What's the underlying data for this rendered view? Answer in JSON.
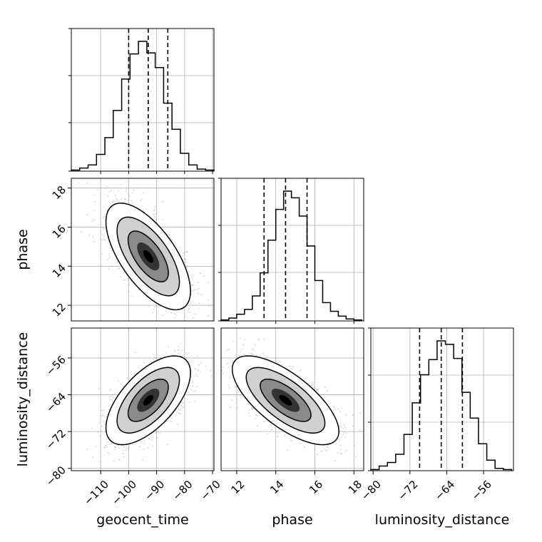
{
  "chart_data": {
    "type": "corner",
    "grid": true,
    "parameters": [
      "geocent_time",
      "phase",
      "luminosity_distance"
    ],
    "axis_labels": {
      "geocent_time": "geocent_time",
      "phase": "phase",
      "luminosity_distance": "luminosity_distance"
    },
    "ranges": {
      "geocent_time": [
        -120.5,
        -69.5
      ],
      "phase": [
        11.2,
        18.5
      ],
      "luminosity_distance": [
        -80.5,
        -49.5
      ]
    },
    "ticks": {
      "geocent_time": [
        -110,
        -100,
        -90,
        -80,
        -70
      ],
      "phase": [
        12,
        14,
        16,
        18
      ],
      "luminosity_distance": [
        -80,
        -72,
        -64,
        -56
      ]
    },
    "tick_labels": {
      "geocent_time": [
        "−110",
        "−100",
        "−90",
        "−80",
        "−70"
      ],
      "phase": [
        "12",
        "14",
        "16",
        "18"
      ],
      "luminosity_distance": [
        "−80",
        "−72",
        "−64",
        "−56"
      ]
    },
    "quantiles": {
      "geocent_time": [
        -100,
        -93,
        -86
      ],
      "phase": [
        13.4,
        14.5,
        15.6
      ],
      "luminosity_distance": [
        -69.9,
        -65.2,
        -60.6
      ]
    },
    "histograms": {
      "geocent_time": {
        "bins": [
          -120.5,
          -117.5,
          -114.5,
          -111.5,
          -108.5,
          -105.5,
          -102.5,
          -99.5,
          -96.5,
          -93.5,
          -90.5,
          -87.5,
          -84.5,
          -81.5,
          -78.5,
          -75.5,
          -72.5,
          -69.5
        ],
        "counts": [
          1,
          3,
          6,
          16,
          32,
          58,
          88,
          112,
          124,
          113,
          99,
          65,
          40,
          17,
          6,
          2,
          1
        ]
      },
      "phase": {
        "bins": [
          11.2,
          11.6,
          12.0,
          12.4,
          12.8,
          13.2,
          13.6,
          14.0,
          14.4,
          14.8,
          15.2,
          15.6,
          16.0,
          16.4,
          16.8,
          17.2,
          17.6,
          18.0,
          18.4
        ],
        "counts": [
          1,
          3,
          7,
          12,
          26,
          50,
          84,
          116,
          135,
          128,
          109,
          78,
          42,
          19,
          10,
          5,
          2,
          1
        ]
      },
      "luminosity_distance": {
        "bins": [
          -80.5,
          -78.7,
          -76.9,
          -75.1,
          -73.3,
          -71.5,
          -69.7,
          -67.9,
          -66.1,
          -64.3,
          -62.5,
          -60.7,
          -58.9,
          -57.1,
          -55.3,
          -53.5,
          -51.7,
          -49.9
        ],
        "counts": [
          1,
          4,
          7,
          14,
          31,
          58,
          82,
          95,
          111,
          108,
          96,
          67,
          45,
          23,
          9,
          2,
          1
        ]
      }
    },
    "pairs": [
      {
        "x": "geocent_time",
        "y": "phase",
        "correlation": -0.65,
        "mean": [
          -93,
          14.5
        ],
        "std": [
          7.2,
          1.3
        ],
        "contours_sigma": [
          1.0,
          1.55,
          2.1
        ]
      },
      {
        "x": "geocent_time",
        "y": "luminosity_distance",
        "correlation": 0.62,
        "mean": [
          -93,
          -65.2
        ],
        "std": [
          7.2,
          4.6
        ],
        "contours_sigma": [
          1.0,
          1.55,
          2.1
        ]
      },
      {
        "x": "phase",
        "y": "luminosity_distance",
        "correlation": -0.7,
        "mean": [
          14.5,
          -65.2
        ],
        "std": [
          1.3,
          4.6
        ],
        "contours_sigma": [
          1.0,
          1.55,
          2.1
        ]
      }
    ]
  }
}
